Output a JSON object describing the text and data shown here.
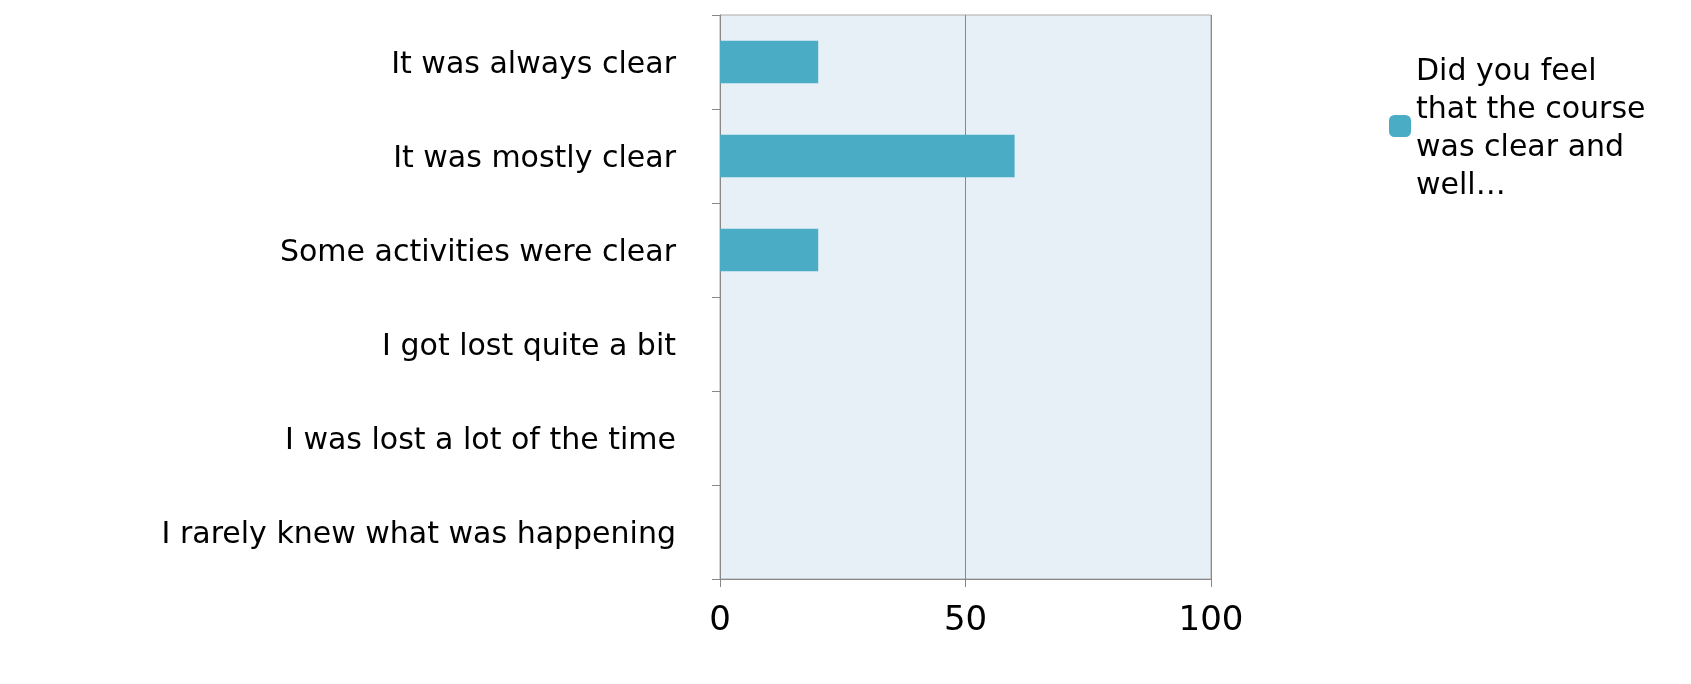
{
  "chart_data": {
    "type": "bar",
    "orientation": "horizontal",
    "categories": [
      "It was always clear",
      "It was mostly clear",
      "Some activities were clear",
      "I got lost quite a bit",
      "I was lost a lot of the time",
      "I rarely knew what was happening"
    ],
    "series": [
      {
        "name": "Did you feel that the course was clear and well…",
        "color": "#4bacc6",
        "values": [
          20,
          60,
          20,
          0,
          0,
          0
        ]
      }
    ],
    "xlim": [
      0,
      100
    ],
    "xticks": [
      0,
      50,
      100
    ],
    "grid": "x",
    "legend": "top right"
  }
}
